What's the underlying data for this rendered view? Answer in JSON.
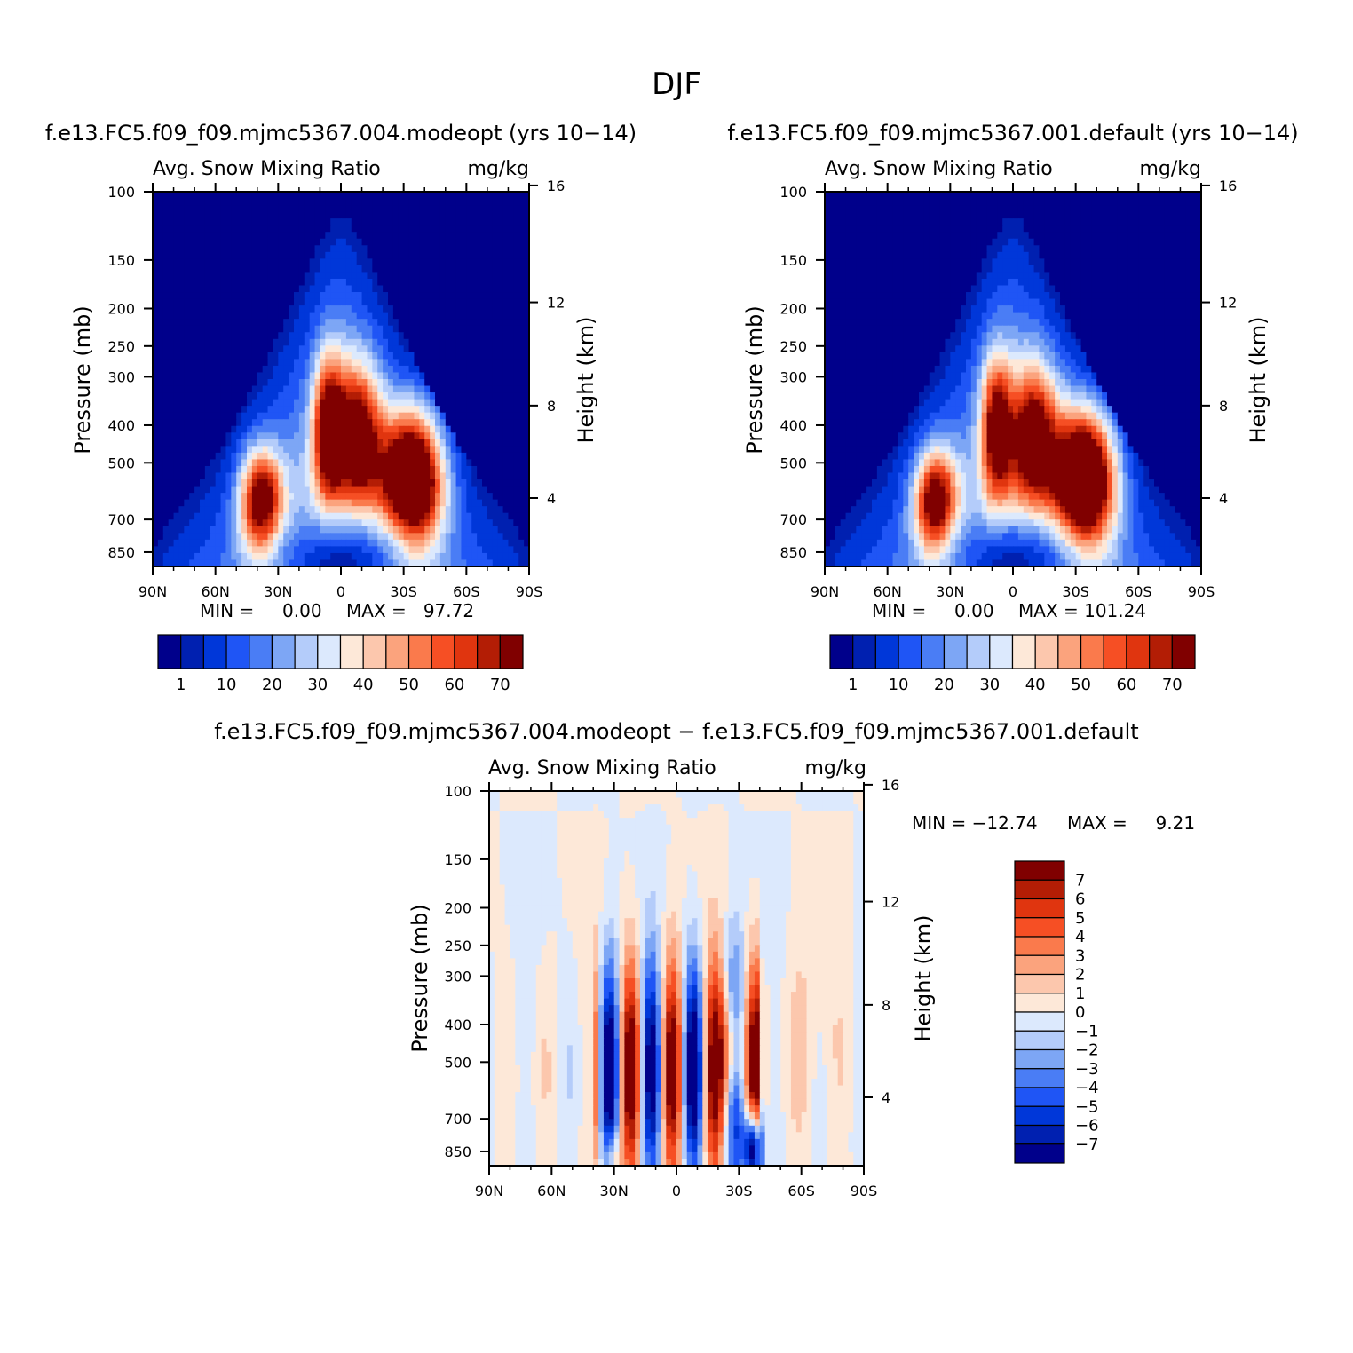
{
  "page_title": "DJF",
  "panels": [
    {
      "title": "f.e13.FC5.f09_f09.mjmc5367.004.modeopt (yrs 10−14)",
      "left_label": "Avg. Snow Mixing Ratio",
      "right_label": "mg/kg",
      "min_text": "MIN =     0.00",
      "max_text": "MAX =   97.72"
    },
    {
      "title": "f.e13.FC5.f09_f09.mjmc5367.001.default (yrs 10−14)",
      "left_label": "Avg. Snow Mixing Ratio",
      "right_label": "mg/kg",
      "min_text": "MIN =     0.00",
      "max_text": "MAX = 101.24"
    },
    {
      "title": "f.e13.FC5.f09_f09.mjmc5367.004.modeopt − f.e13.FC5.f09_f09.mjmc5367.001.default",
      "left_label": "Avg. Snow Mixing Ratio",
      "right_label": "mg/kg",
      "min_text": "MIN = −12.74",
      "max_text": "MAX =     9.21"
    }
  ],
  "chart_data": [
    {
      "type": "heatmap",
      "title": "f.e13.FC5.f09_f09.mjmc5367.004.modeopt (yrs 10−14)",
      "xlabel": "",
      "ylabel": "Pressure  (mb)",
      "y2label": "Height  (km)",
      "x_ticks": [
        "90N",
        "60N",
        "30N",
        "0",
        "30S",
        "60S",
        "90S"
      ],
      "y_ticks": [
        100,
        150,
        200,
        250,
        300,
        400,
        500,
        700,
        850
      ],
      "y2_ticks": [
        16,
        12,
        8,
        4
      ],
      "ylim": [
        100,
        925
      ],
      "scale": "log-pressure",
      "min": 0.0,
      "max": 97.72,
      "levels": [
        1,
        5,
        10,
        15,
        20,
        25,
        30,
        35,
        40,
        45,
        50,
        55,
        60,
        65,
        70
      ],
      "level_labels": [
        "1",
        "10",
        "20",
        "30",
        "40",
        "50",
        "60",
        "70"
      ],
      "colors": [
        "#00008b",
        "#0020b0",
        "#0037d9",
        "#1f55f5",
        "#4a7df5",
        "#7da6f5",
        "#b4ccfa",
        "#dce9fd",
        "#fde8d8",
        "#fcc7ad",
        "#fba37d",
        "#fa7a4c",
        "#f64f24",
        "#e0350f",
        "#b31d05",
        "#800000"
      ],
      "features": [
        {
          "lat": 38,
          "p": 650,
          "value": 70
        },
        {
          "lat": 5,
          "p": 400,
          "value": 65
        },
        {
          "lat": -8,
          "p": 400,
          "value": 65
        },
        {
          "lat": -33,
          "p": 560,
          "value": 97.72
        }
      ]
    },
    {
      "type": "heatmap",
      "title": "f.e13.FC5.f09_f09.mjmc5367.001.default (yrs 10−14)",
      "xlabel": "",
      "ylabel": "Pressure  (mb)",
      "y2label": "Height  (km)",
      "x_ticks": [
        "90N",
        "60N",
        "30N",
        "0",
        "30S",
        "60S",
        "90S"
      ],
      "y_ticks": [
        100,
        150,
        200,
        250,
        300,
        400,
        500,
        700,
        850
      ],
      "y2_ticks": [
        16,
        12,
        8,
        4
      ],
      "ylim": [
        100,
        925
      ],
      "scale": "log-pressure",
      "min": 0.0,
      "max": 101.24,
      "levels": [
        1,
        5,
        10,
        15,
        20,
        25,
        30,
        35,
        40,
        45,
        50,
        55,
        60,
        65,
        70
      ],
      "level_labels": [
        "1",
        "10",
        "20",
        "30",
        "40",
        "50",
        "60",
        "70"
      ],
      "colors": [
        "#00008b",
        "#0020b0",
        "#0037d9",
        "#1f55f5",
        "#4a7df5",
        "#7da6f5",
        "#b4ccfa",
        "#dce9fd",
        "#fde8d8",
        "#fcc7ad",
        "#fba37d",
        "#fa7a4c",
        "#f64f24",
        "#e0350f",
        "#b31d05",
        "#800000"
      ],
      "features": [
        {
          "lat": 37,
          "p": 620,
          "value": 70
        },
        {
          "lat": 8,
          "p": 400,
          "value": 65
        },
        {
          "lat": -10,
          "p": 400,
          "value": 65
        },
        {
          "lat": -34,
          "p": 560,
          "value": 101.24
        }
      ]
    },
    {
      "type": "heatmap",
      "title": "f.e13.FC5.f09_f09.mjmc5367.004.modeopt − f.e13.FC5.f09_f09.mjmc5367.001.default",
      "xlabel": "",
      "ylabel": "Pressure  (mb)",
      "y2label": "Height  (km)",
      "x_ticks": [
        "90N",
        "60N",
        "30N",
        "0",
        "30S",
        "60S",
        "90S"
      ],
      "y_ticks": [
        100,
        150,
        200,
        250,
        300,
        400,
        500,
        700,
        850
      ],
      "y2_ticks": [
        16,
        12,
        8,
        4
      ],
      "ylim": [
        100,
        925
      ],
      "scale": "log-pressure",
      "min": -12.74,
      "max": 9.21,
      "levels": [
        -7,
        -6,
        -5,
        -4,
        -3,
        -2,
        -1,
        0,
        1,
        2,
        3,
        4,
        5,
        6,
        7
      ],
      "level_labels": [
        "7",
        "6",
        "5",
        "4",
        "3",
        "2",
        "1",
        "0",
        "−1",
        "−2",
        "−3",
        "−4",
        "−5",
        "−6",
        "−7"
      ],
      "colors": [
        "#00008b",
        "#0020b0",
        "#0037d9",
        "#1f55f5",
        "#4a7df5",
        "#7da6f5",
        "#b4ccfa",
        "#dce9fd",
        "#fde8d8",
        "#fcc7ad",
        "#fba37d",
        "#fa7a4c",
        "#f64f24",
        "#e0350f",
        "#b31d05",
        "#800000"
      ],
      "features": [
        {
          "lat": 12,
          "p": 380,
          "value": 9.21
        },
        {
          "lat": -27,
          "p": 480,
          "value": 8
        },
        {
          "lat": 20,
          "p": 600,
          "value": -7
        },
        {
          "lat": -37,
          "p": 850,
          "value": -12.74
        }
      ]
    }
  ]
}
